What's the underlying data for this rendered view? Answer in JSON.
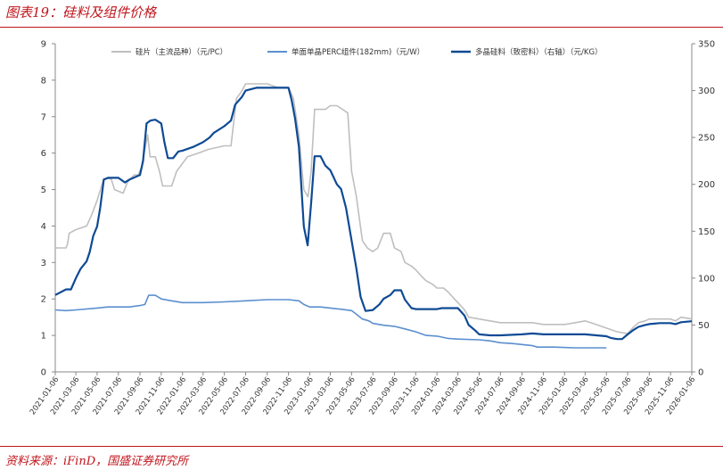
{
  "header": {
    "title": "图表19：硅料及组件价格"
  },
  "footer": {
    "source": "资料来源：iFinD，国盛证券研究所"
  },
  "colors": {
    "accent": "#c0161c",
    "wafer": "#bfbfbf",
    "module": "#5b8fcf",
    "polysilicon": "#0e4a94"
  },
  "chart_data": {
    "type": "line",
    "left_axis": {
      "range": [
        0,
        9
      ],
      "ticks": [
        "0",
        "1",
        "2",
        "3",
        "4",
        "5",
        "6",
        "7",
        "8",
        "9"
      ]
    },
    "right_axis": {
      "range": [
        0,
        350
      ],
      "ticks": [
        "0",
        "50",
        "100",
        "150",
        "200",
        "250",
        "300",
        "350"
      ]
    },
    "x_range": [
      "2021-01-06",
      "2026-01-06"
    ],
    "x_ticks": [
      "2021-01-06",
      "2021-03-06",
      "2021-05-06",
      "2021-07-06",
      "2021-09-06",
      "2021-11-06",
      "2022-01-06",
      "2022-03-06",
      "2022-05-06",
      "2022-07-06",
      "2022-09-06",
      "2022-11-06",
      "2023-01-06",
      "2023-03-06",
      "2023-05-06",
      "2023-07-06",
      "2023-09-06",
      "2023-11-06",
      "2024-01-06",
      "2024-03-06",
      "2024-05-06",
      "2024-07-06",
      "2024-09-06",
      "2024-11-06",
      "2025-01-06",
      "2025-03-06",
      "2025-05-06",
      "2025-07-06",
      "2025-09-06",
      "2025-11-06",
      "2026-01-06"
    ],
    "legend_placement": "top",
    "grid": false,
    "series": [
      {
        "name": "硅片（主流品种）（元/PC）",
        "axis": "left",
        "color": "#bfbfbf",
        "points": [
          [
            "2021-01-06",
            3.4
          ],
          [
            "2021-02-06",
            3.4
          ],
          [
            "2021-02-10",
            3.5
          ],
          [
            "2021-02-15",
            3.8
          ],
          [
            "2021-03-06",
            3.9
          ],
          [
            "2021-04-06",
            4.0
          ],
          [
            "2021-04-20",
            4.3
          ],
          [
            "2021-05-06",
            4.7
          ],
          [
            "2021-05-25",
            5.3
          ],
          [
            "2021-06-15",
            5.3
          ],
          [
            "2021-06-25",
            5.0
          ],
          [
            "2021-07-20",
            4.9
          ],
          [
            "2021-08-01",
            5.2
          ],
          [
            "2021-08-20",
            5.4
          ],
          [
            "2021-09-01",
            5.4
          ],
          [
            "2021-09-10",
            5.6
          ],
          [
            "2021-09-20",
            6.1
          ],
          [
            "2021-09-28",
            6.5
          ],
          [
            "2021-10-05",
            5.9
          ],
          [
            "2021-10-20",
            5.9
          ],
          [
            "2021-11-01",
            5.5
          ],
          [
            "2021-11-10",
            5.1
          ],
          [
            "2021-12-06",
            5.1
          ],
          [
            "2021-12-20",
            5.5
          ],
          [
            "2022-01-20",
            5.9
          ],
          [
            "2022-02-20",
            6.0
          ],
          [
            "2022-03-20",
            6.1
          ],
          [
            "2022-05-06",
            6.2
          ],
          [
            "2022-05-25",
            6.2
          ],
          [
            "2022-06-10",
            7.5
          ],
          [
            "2022-06-25",
            7.7
          ],
          [
            "2022-07-06",
            7.9
          ],
          [
            "2022-07-20",
            7.9
          ],
          [
            "2022-08-06",
            7.9
          ],
          [
            "2022-09-06",
            7.9
          ],
          [
            "2022-10-06",
            7.8
          ],
          [
            "2022-11-06",
            7.8
          ],
          [
            "2022-11-20",
            7.5
          ],
          [
            "2022-12-06",
            6.5
          ],
          [
            "2022-12-20",
            5.0
          ],
          [
            "2023-01-01",
            4.8
          ],
          [
            "2023-01-10",
            5.5
          ],
          [
            "2023-01-20",
            7.2
          ],
          [
            "2023-02-20",
            7.2
          ],
          [
            "2023-03-06",
            7.3
          ],
          [
            "2023-03-25",
            7.3
          ],
          [
            "2023-04-10",
            7.2
          ],
          [
            "2023-04-25",
            7.1
          ],
          [
            "2023-05-06",
            5.5
          ],
          [
            "2023-05-20",
            4.8
          ],
          [
            "2023-06-06",
            3.6
          ],
          [
            "2023-06-20",
            3.4
          ],
          [
            "2023-07-06",
            3.3
          ],
          [
            "2023-07-20",
            3.4
          ],
          [
            "2023-08-06",
            3.8
          ],
          [
            "2023-08-25",
            3.8
          ],
          [
            "2023-09-06",
            3.4
          ],
          [
            "2023-09-25",
            3.3
          ],
          [
            "2023-10-06",
            3.0
          ],
          [
            "2023-10-25",
            2.9
          ],
          [
            "2023-11-06",
            2.8
          ],
          [
            "2023-11-25",
            2.6
          ],
          [
            "2023-12-06",
            2.5
          ],
          [
            "2023-12-25",
            2.4
          ],
          [
            "2024-01-06",
            2.3
          ],
          [
            "2024-01-25",
            2.3
          ],
          [
            "2024-02-06",
            2.2
          ],
          [
            "2024-02-25",
            2.0
          ],
          [
            "2024-03-06",
            1.9
          ],
          [
            "2024-03-25",
            1.7
          ],
          [
            "2024-04-06",
            1.5
          ],
          [
            "2024-05-06",
            1.45
          ],
          [
            "2024-06-06",
            1.4
          ],
          [
            "2024-07-06",
            1.35
          ],
          [
            "2024-09-06",
            1.35
          ],
          [
            "2024-10-06",
            1.35
          ],
          [
            "2024-11-06",
            1.3
          ],
          [
            "2025-01-06",
            1.3
          ],
          [
            "2025-02-06",
            1.35
          ],
          [
            "2025-03-06",
            1.4
          ],
          [
            "2025-04-06",
            1.3
          ],
          [
            "2025-05-06",
            1.2
          ],
          [
            "2025-06-06",
            1.1
          ],
          [
            "2025-07-06",
            1.05
          ],
          [
            "2025-07-20",
            1.2
          ],
          [
            "2025-08-06",
            1.35
          ],
          [
            "2025-08-25",
            1.4
          ],
          [
            "2025-09-06",
            1.45
          ],
          [
            "2025-10-06",
            1.45
          ],
          [
            "2025-11-06",
            1.45
          ],
          [
            "2025-11-20",
            1.4
          ],
          [
            "2025-12-06",
            1.5
          ],
          [
            "2026-01-06",
            1.45
          ]
        ]
      },
      {
        "name": "单面单晶PERC组件(182mm)（元/W）",
        "axis": "left",
        "color": "#5b8fcf",
        "points": [
          [
            "2021-01-06",
            1.7
          ],
          [
            "2021-02-06",
            1.68
          ],
          [
            "2021-03-06",
            1.7
          ],
          [
            "2021-05-06",
            1.75
          ],
          [
            "2021-06-06",
            1.78
          ],
          [
            "2021-08-06",
            1.78
          ],
          [
            "2021-09-06",
            1.82
          ],
          [
            "2021-09-20",
            1.85
          ],
          [
            "2021-10-01",
            2.1
          ],
          [
            "2021-10-20",
            2.1
          ],
          [
            "2021-11-06",
            2.0
          ],
          [
            "2021-12-06",
            1.95
          ],
          [
            "2022-01-06",
            1.9
          ],
          [
            "2022-03-06",
            1.9
          ],
          [
            "2022-05-06",
            1.92
          ],
          [
            "2022-07-06",
            1.95
          ],
          [
            "2022-09-06",
            1.98
          ],
          [
            "2022-11-06",
            1.98
          ],
          [
            "2022-12-06",
            1.95
          ],
          [
            "2022-12-20",
            1.85
          ],
          [
            "2023-01-06",
            1.78
          ],
          [
            "2023-02-06",
            1.78
          ],
          [
            "2023-03-06",
            1.75
          ],
          [
            "2023-04-06",
            1.72
          ],
          [
            "2023-05-06",
            1.68
          ],
          [
            "2023-05-20",
            1.58
          ],
          [
            "2023-06-06",
            1.45
          ],
          [
            "2023-06-25",
            1.4
          ],
          [
            "2023-07-06",
            1.33
          ],
          [
            "2023-08-06",
            1.28
          ],
          [
            "2023-09-06",
            1.25
          ],
          [
            "2023-10-06",
            1.18
          ],
          [
            "2023-11-06",
            1.1
          ],
          [
            "2023-12-06",
            1.0
          ],
          [
            "2024-01-06",
            0.98
          ],
          [
            "2024-02-06",
            0.92
          ],
          [
            "2024-03-06",
            0.9
          ],
          [
            "2024-05-06",
            0.88
          ],
          [
            "2024-06-06",
            0.85
          ],
          [
            "2024-07-06",
            0.8
          ],
          [
            "2024-08-06",
            0.78
          ],
          [
            "2024-09-06",
            0.75
          ],
          [
            "2024-10-06",
            0.72
          ],
          [
            "2024-10-20",
            0.68
          ],
          [
            "2024-12-06",
            0.68
          ],
          [
            "2025-02-06",
            0.66
          ],
          [
            "2025-04-06",
            0.66
          ],
          [
            "2025-05-06",
            0.66
          ]
        ]
      },
      {
        "name": "多晶硅料（致密料）（右轴）（元/KG）",
        "axis": "right",
        "color": "#0e4a94",
        "points": [
          [
            "2021-01-06",
            82
          ],
          [
            "2021-02-06",
            88
          ],
          [
            "2021-02-20",
            88
          ],
          [
            "2021-03-06",
            100
          ],
          [
            "2021-03-20",
            110
          ],
          [
            "2021-04-06",
            118
          ],
          [
            "2021-04-15",
            128
          ],
          [
            "2021-04-25",
            145
          ],
          [
            "2021-05-06",
            155
          ],
          [
            "2021-05-15",
            175
          ],
          [
            "2021-05-25",
            205
          ],
          [
            "2021-06-06",
            207
          ],
          [
            "2021-07-06",
            207
          ],
          [
            "2021-07-25",
            202
          ],
          [
            "2021-08-06",
            205
          ],
          [
            "2021-08-25",
            208
          ],
          [
            "2021-09-06",
            210
          ],
          [
            "2021-09-15",
            225
          ],
          [
            "2021-09-25",
            265
          ],
          [
            "2021-10-06",
            268
          ],
          [
            "2021-10-20",
            269
          ],
          [
            "2021-11-06",
            265
          ],
          [
            "2021-11-15",
            245
          ],
          [
            "2021-11-25",
            228
          ],
          [
            "2021-12-10",
            228
          ],
          [
            "2021-12-25",
            235
          ],
          [
            "2022-01-06",
            236
          ],
          [
            "2022-02-06",
            240
          ],
          [
            "2022-03-06",
            245
          ],
          [
            "2022-03-25",
            250
          ],
          [
            "2022-04-06",
            255
          ],
          [
            "2022-05-06",
            262
          ],
          [
            "2022-05-25",
            268
          ],
          [
            "2022-06-06",
            285
          ],
          [
            "2022-06-25",
            293
          ],
          [
            "2022-07-06",
            300
          ],
          [
            "2022-08-06",
            303
          ],
          [
            "2022-09-06",
            303
          ],
          [
            "2022-10-06",
            303
          ],
          [
            "2022-11-06",
            303
          ],
          [
            "2022-11-15",
            290
          ],
          [
            "2022-11-25",
            270
          ],
          [
            "2022-12-06",
            240
          ],
          [
            "2022-12-20",
            155
          ],
          [
            "2022-12-31",
            135
          ],
          [
            "2023-01-10",
            180
          ],
          [
            "2023-01-20",
            230
          ],
          [
            "2023-02-06",
            230
          ],
          [
            "2023-02-20",
            220
          ],
          [
            "2023-03-06",
            215
          ],
          [
            "2023-03-25",
            200
          ],
          [
            "2023-04-06",
            195
          ],
          [
            "2023-04-20",
            175
          ],
          [
            "2023-05-06",
            140
          ],
          [
            "2023-05-20",
            110
          ],
          [
            "2023-06-01",
            80
          ],
          [
            "2023-06-15",
            65
          ],
          [
            "2023-07-06",
            66
          ],
          [
            "2023-07-25",
            72
          ],
          [
            "2023-08-06",
            78
          ],
          [
            "2023-08-25",
            82
          ],
          [
            "2023-09-06",
            87
          ],
          [
            "2023-09-25",
            87
          ],
          [
            "2023-10-06",
            77
          ],
          [
            "2023-10-25",
            68
          ],
          [
            "2023-11-06",
            67
          ],
          [
            "2023-12-06",
            67
          ],
          [
            "2024-01-06",
            67
          ],
          [
            "2024-01-20",
            68
          ],
          [
            "2024-02-06",
            68
          ],
          [
            "2024-03-06",
            68
          ],
          [
            "2024-03-25",
            60
          ],
          [
            "2024-04-06",
            50
          ],
          [
            "2024-04-25",
            44
          ],
          [
            "2024-05-06",
            40
          ],
          [
            "2024-06-06",
            39
          ],
          [
            "2024-07-06",
            39
          ],
          [
            "2024-09-06",
            40
          ],
          [
            "2024-10-06",
            41
          ],
          [
            "2024-11-06",
            40
          ],
          [
            "2025-01-06",
            40
          ],
          [
            "2025-03-06",
            40
          ],
          [
            "2025-05-06",
            38
          ],
          [
            "2025-05-20",
            36
          ],
          [
            "2025-06-06",
            35
          ],
          [
            "2025-06-20",
            35
          ],
          [
            "2025-07-06",
            40
          ],
          [
            "2025-07-20",
            44
          ],
          [
            "2025-08-06",
            48
          ],
          [
            "2025-08-25",
            50
          ],
          [
            "2025-09-06",
            51
          ],
          [
            "2025-10-06",
            52
          ],
          [
            "2025-11-06",
            52
          ],
          [
            "2025-11-20",
            51
          ],
          [
            "2025-12-06",
            53
          ],
          [
            "2026-01-06",
            54
          ]
        ]
      }
    ]
  }
}
